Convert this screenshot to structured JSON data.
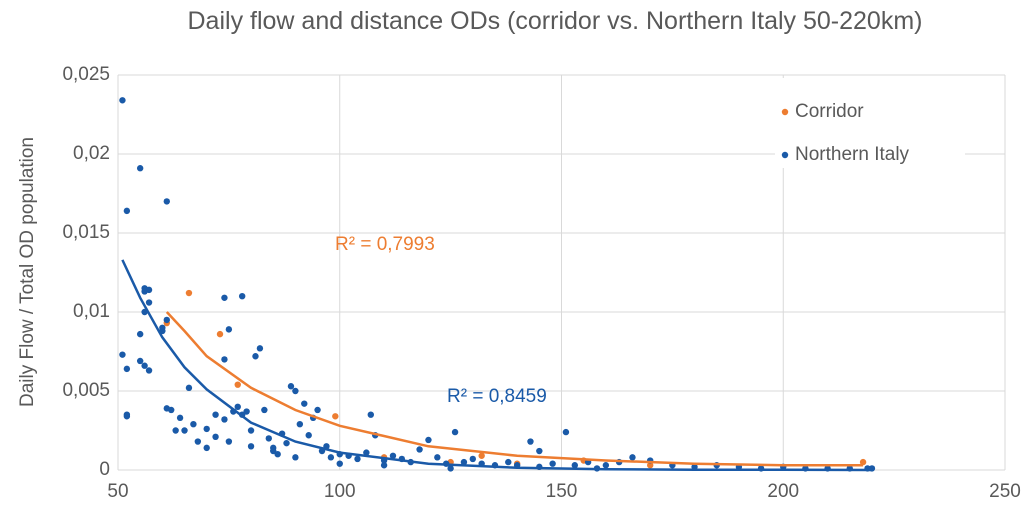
{
  "chart_data": {
    "type": "scatter",
    "title": "Daily flow and distance ODs (corridor vs. Northern Italy 50-220km)",
    "y_label": "Daily Flow / Total OD population",
    "xlim": [
      50,
      250
    ],
    "xticks": [
      50,
      100,
      150,
      200,
      250
    ],
    "ylim": [
      0,
      0.025
    ],
    "yticks": [
      0,
      {
        "value": 0.005,
        "label": "0,005"
      },
      {
        "value": 0.01,
        "label": "0,01"
      },
      {
        "value": 0.015,
        "label": "0,015"
      },
      {
        "value": 0.02,
        "label": "0,02"
      },
      {
        "value": 0.025,
        "label": "0,025"
      }
    ],
    "grid": true,
    "legend": "upper right",
    "series": [
      {
        "name": "Corridor",
        "color": "#ed7d31",
        "x": [
          61,
          66,
          73,
          77,
          99,
          132,
          155,
          218,
          110,
          125,
          140,
          170
        ],
        "values": [
          0.0093,
          0.0112,
          0.0086,
          0.0054,
          0.0034,
          0.0009,
          0.0006,
          0.0005,
          0.0008,
          0.0005,
          0.0004,
          0.0003
        ]
      },
      {
        "name": "Northern Italy",
        "color": "#1a5aa8",
        "x": [
          51,
          52,
          55,
          61,
          51,
          52,
          52,
          52,
          55,
          56,
          56,
          57,
          57,
          56,
          55,
          56,
          57,
          60,
          60,
          61,
          61,
          62,
          63,
          64,
          65,
          66,
          67,
          68,
          70,
          72,
          72,
          74,
          74,
          75,
          74,
          76,
          77,
          78,
          78,
          79,
          80,
          81,
          82,
          83,
          84,
          85,
          86,
          87,
          88,
          89,
          90,
          91,
          92,
          93,
          94,
          95,
          96,
          97,
          98,
          100,
          102,
          104,
          106,
          107,
          108,
          110,
          112,
          114,
          116,
          118,
          120,
          122,
          124,
          126,
          128,
          130,
          132,
          135,
          138,
          140,
          143,
          145,
          148,
          151,
          153,
          156,
          160,
          163,
          166,
          170,
          175,
          180,
          185,
          190,
          195,
          200,
          205,
          210,
          215,
          219,
          220,
          158,
          145,
          125,
          110,
          100,
          90,
          85,
          80,
          75,
          70
        ],
        "values": [
          0.0234,
          0.0164,
          0.0191,
          0.017,
          0.0073,
          0.0064,
          0.0035,
          0.0034,
          0.0086,
          0.0113,
          0.0115,
          0.0114,
          0.0106,
          0.01,
          0.0069,
          0.0066,
          0.0063,
          0.0088,
          0.009,
          0.0095,
          0.0039,
          0.0038,
          0.0025,
          0.0033,
          0.0025,
          0.0052,
          0.0029,
          0.0018,
          0.0026,
          0.0035,
          0.0021,
          0.0032,
          0.0109,
          0.0089,
          0.007,
          0.0037,
          0.004,
          0.011,
          0.0035,
          0.0037,
          0.0025,
          0.0072,
          0.0077,
          0.0038,
          0.002,
          0.0014,
          0.001,
          0.0023,
          0.0017,
          0.0053,
          0.005,
          0.0029,
          0.0042,
          0.0022,
          0.0033,
          0.0038,
          0.0012,
          0.0015,
          0.0008,
          0.001,
          0.0009,
          0.0007,
          0.0011,
          0.0035,
          0.0022,
          0.0006,
          0.0009,
          0.0007,
          0.0005,
          0.0013,
          0.0019,
          0.0008,
          0.0004,
          0.0024,
          0.0005,
          0.0007,
          0.0004,
          0.0003,
          0.0005,
          0.0003,
          0.0018,
          0.0012,
          0.0004,
          0.0024,
          0.0003,
          0.0005,
          0.0003,
          0.0005,
          0.0008,
          0.0006,
          0.0003,
          0.0002,
          0.0003,
          0.0002,
          0.0001,
          0.0002,
          0.0001,
          0.0001,
          0.0001,
          0.0001,
          0.0001,
          0.0001,
          0.0002,
          0.0001,
          0.0003,
          0.0004,
          0.0008,
          0.0012,
          0.0015,
          0.0018,
          0.0014
        ]
      }
    ],
    "trendlines": [
      {
        "color": "#ed7d31",
        "x": [
          61,
          65,
          70,
          80,
          90,
          100,
          120,
          140,
          160,
          180,
          200,
          218
        ],
        "values": [
          0.01,
          0.0088,
          0.0072,
          0.0052,
          0.0038,
          0.0028,
          0.0015,
          0.0009,
          0.0006,
          0.0004,
          0.0003,
          0.0003
        ]
      },
      {
        "color": "#1a5aa8",
        "x": [
          51,
          55,
          60,
          65,
          70,
          80,
          90,
          100,
          120,
          140,
          160,
          180,
          200,
          220
        ],
        "values": [
          0.0133,
          0.0109,
          0.0084,
          0.0065,
          0.0051,
          0.003,
          0.0018,
          0.0011,
          0.0004,
          0.00014,
          5e-05,
          2e-05,
          1e-05,
          0
        ]
      }
    ],
    "annotations": [
      {
        "text": "R² = 0,7993",
        "color": "#ed7d31"
      },
      {
        "text": "R² = 0,8459",
        "color": "#1a5aa8"
      }
    ]
  }
}
